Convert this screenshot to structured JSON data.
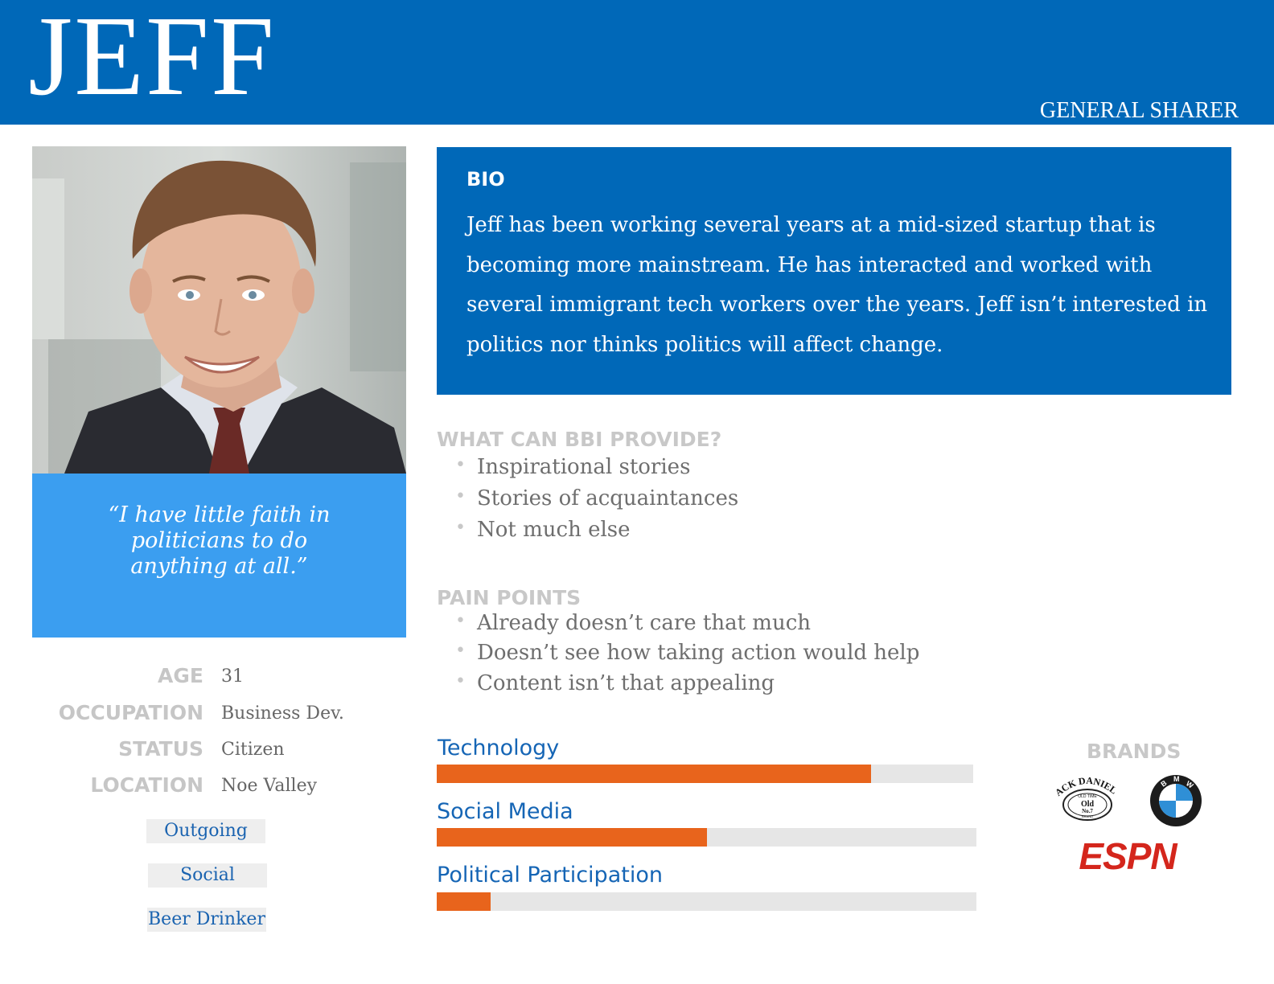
{
  "header": {
    "name": "JEFF",
    "role": "GENERAL SHARER"
  },
  "quote": "“I have little faith in politicians to do anything at all.”",
  "facts": [
    {
      "label": "AGE",
      "value": "31"
    },
    {
      "label": "OCCUPATION",
      "value": "Business Dev."
    },
    {
      "label": "STATUS",
      "value": "Citizen"
    },
    {
      "label": "LOCATION",
      "value": "Noe Valley"
    }
  ],
  "traits": [
    "Outgoing",
    "Social",
    "Beer Drinker"
  ],
  "bio": {
    "title": "BIO",
    "text": "Jeff has been working several years at a mid-sized startup that is becoming more mainstream. He has interacted and worked with several immigrant tech workers over the years. Jeff isn’t interested in politics nor thinks politics will affect change."
  },
  "provide": {
    "title": "WHAT CAN BBI PROVIDE?",
    "items": [
      "Inspirational stories",
      "Stories of acquaintances",
      "Not much else"
    ]
  },
  "pain_points": {
    "title": "PAIN POINTS",
    "items": [
      "Already doesn’t care that much",
      "Doesn’t see how taking action would help",
      "Content isn’t that appealing"
    ]
  },
  "meters": [
    {
      "label": "Technology",
      "fraction": 0.81
    },
    {
      "label": "Social Media",
      "fraction": 0.5
    },
    {
      "label": "Political Participation",
      "fraction": 0.1
    }
  ],
  "brands": {
    "title": "BRANDS",
    "jd_top": "JACK DANIEL'S",
    "jd_mid": "OLD TIME",
    "jd_old": "Old",
    "jd_no": "No.7",
    "jd_brand": "BRAND",
    "bmw": [
      "B",
      "M",
      "W"
    ],
    "espn": "ESPN"
  },
  "colors": {
    "header": "#0068b8",
    "quote_box": "#3b9ef0",
    "bar_fill": "#e8641c",
    "bar_track": "#e6e6e6"
  }
}
